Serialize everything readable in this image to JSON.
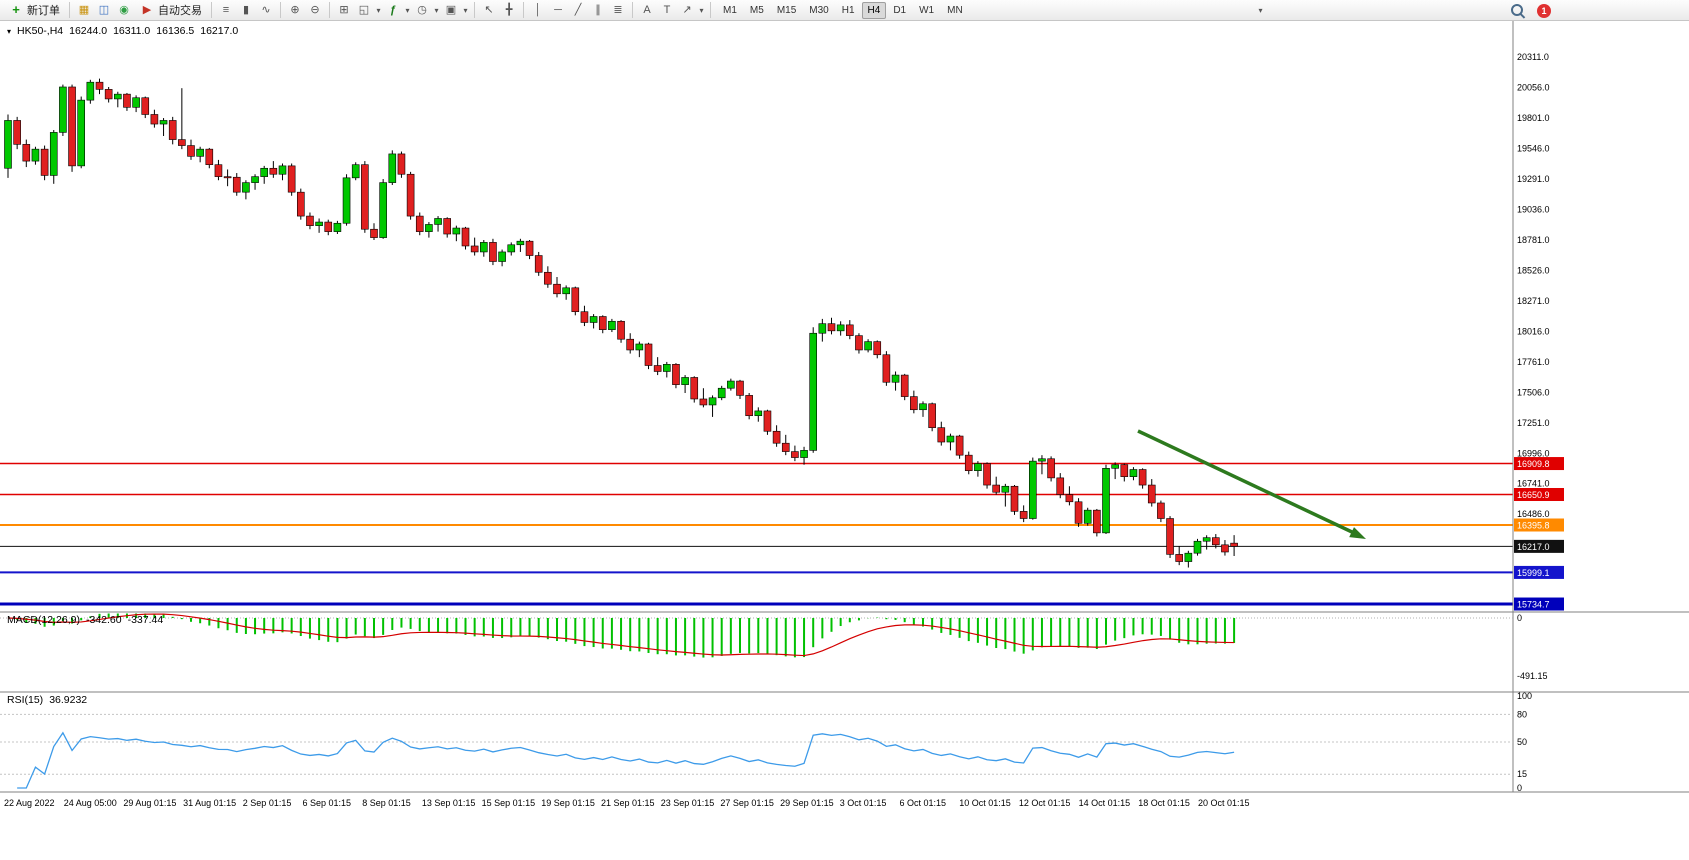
{
  "toolbar": {
    "new_order_label": "新订单",
    "auto_trading_label": "自动交易",
    "timeframes": [
      "M1",
      "M5",
      "M15",
      "M30",
      "H1",
      "H4",
      "D1",
      "W1",
      "MN"
    ],
    "active_timeframe": "H4",
    "notification_count": "1"
  },
  "icons": {
    "new_order": "+",
    "market_watch": "▦",
    "data_window": "◫",
    "navigator": "◉",
    "auto_trading": "▶",
    "bar_chart": "≡",
    "candle_chart": "▮",
    "line_chart": "∿",
    "zoom_in": "⊕",
    "zoom_out": "⊖",
    "tile_windows": "⊞",
    "new_chart": "◱",
    "indicators": "ƒ",
    "periods": "◷",
    "templates": "▣",
    "cursor": "↖",
    "crosshair": "╋",
    "vertical_line": "│",
    "horizontal_line": "─",
    "trendline": "╱",
    "channel": "∥",
    "fibonacci": "≣",
    "text": "A",
    "text_label": "T",
    "arrows": "↗",
    "chevron": "▾"
  },
  "header": {
    "symbol": "HK50-,H4",
    "open": "16244.0",
    "high": "16311.0",
    "low": "16136.5",
    "close": "16217.0"
  },
  "macd": {
    "label": "MACD(12,26,9)",
    "value_main": "-342.60",
    "value_signal": "-337.44"
  },
  "rsi": {
    "label": "RSI(15)",
    "value": "36.9232"
  },
  "colors": {
    "up": "#00c800",
    "down": "#e02020",
    "wick": "#000000",
    "macd_hist": "#00c000",
    "macd_signal": "#d40000",
    "rsi_line": "#3d9be9",
    "arrow": "#2d7a1e",
    "separator": "#808080"
  },
  "chart_data": {
    "type": "candlestick",
    "symbol": "HK50-",
    "period": "H4",
    "ylim": [
      15668,
      20453
    ],
    "y_ticks": [
      "20311.0",
      "20056.0",
      "19801.0",
      "19546.0",
      "19291.0",
      "19036.0",
      "18781.0",
      "18526.0",
      "18271.0",
      "18016.0",
      "17761.0",
      "17506.0",
      "17251.0",
      "16996.0",
      "16741.0",
      "16486.0",
      "16231.0",
      "15976.0",
      "15721.0"
    ],
    "x_labels": [
      "22 Aug 2022",
      "24 Aug 05:00",
      "29 Aug 01:15",
      "31 Aug 01:15",
      "2 Sep 01:15",
      "6 Sep 01:15",
      "8 Sep 01:15",
      "13 Sep 01:15",
      "15 Sep 01:15",
      "19 Sep 01:15",
      "21 Sep 01:15",
      "23 Sep 01:15",
      "27 Sep 01:15",
      "29 Sep 01:15",
      "3 Oct 01:15",
      "6 Oct 01:15",
      "10 Oct 01:15",
      "12 Oct 01:15",
      "14 Oct 01:15",
      "18 Oct 01:15",
      "20 Oct 01:15"
    ],
    "hlines": [
      {
        "label": "16909.8",
        "price": 16909.8,
        "color": "#e00000",
        "width": 1.5
      },
      {
        "label": "16650.9",
        "price": 16650.9,
        "color": "#e00000",
        "width": 1.5
      },
      {
        "label": "16395.8",
        "price": 16395.8,
        "color": "#ff8a00",
        "width": 2
      },
      {
        "label": "16217.0",
        "price": 16217.0,
        "color": "#111111",
        "width": 1
      },
      {
        "label": "15999.1",
        "price": 15999.1,
        "color": "#1414cc",
        "width": 2
      },
      {
        "label": "15734.7",
        "price": 15734.7,
        "color": "#0000bb",
        "width": 3
      }
    ],
    "macd_axis": [
      "0",
      "-491.15"
    ],
    "rsi_axis": [
      "100",
      "80",
      "50",
      "15",
      "0"
    ],
    "rsi_levels": [
      80,
      50,
      15
    ],
    "candles": [
      [
        19380,
        19830,
        19300,
        19780
      ],
      [
        19780,
        19810,
        19540,
        19580
      ],
      [
        19580,
        19620,
        19390,
        19440
      ],
      [
        19440,
        19560,
        19410,
        19540
      ],
      [
        19540,
        19570,
        19280,
        19320
      ],
      [
        19320,
        19700,
        19250,
        19680
      ],
      [
        19680,
        20080,
        19650,
        20060
      ],
      [
        20060,
        20080,
        19350,
        19400
      ],
      [
        19400,
        19980,
        19380,
        19950
      ],
      [
        19950,
        20120,
        19920,
        20100
      ],
      [
        20100,
        20130,
        20000,
        20040
      ],
      [
        20040,
        20060,
        19930,
        19960
      ],
      [
        19960,
        20020,
        19890,
        20000
      ],
      [
        20000,
        20010,
        19860,
        19890
      ],
      [
        19890,
        19990,
        19850,
        19970
      ],
      [
        19970,
        19980,
        19800,
        19830
      ],
      [
        19830,
        19870,
        19720,
        19750
      ],
      [
        19750,
        19800,
        19650,
        19780
      ],
      [
        19780,
        19810,
        19580,
        19620
      ],
      [
        19620,
        20050,
        19540,
        19570
      ],
      [
        19570,
        19620,
        19450,
        19480
      ],
      [
        19480,
        19560,
        19430,
        19540
      ],
      [
        19540,
        19550,
        19380,
        19410
      ],
      [
        19410,
        19450,
        19280,
        19310
      ],
      [
        19310,
        19370,
        19230,
        19305
      ],
      [
        19305,
        19340,
        19150,
        19180
      ],
      [
        19180,
        19280,
        19120,
        19260
      ],
      [
        19260,
        19330,
        19200,
        19310
      ],
      [
        19310,
        19400,
        19250,
        19380
      ],
      [
        19380,
        19440,
        19300,
        19330
      ],
      [
        19330,
        19420,
        19280,
        19400
      ],
      [
        19400,
        19420,
        19150,
        19180
      ],
      [
        19180,
        19210,
        18950,
        18980
      ],
      [
        18980,
        19010,
        18870,
        18900
      ],
      [
        18900,
        18960,
        18840,
        18930
      ],
      [
        18930,
        18950,
        18820,
        18850
      ],
      [
        18850,
        18940,
        18830,
        18920
      ],
      [
        18920,
        19330,
        18900,
        19300
      ],
      [
        19300,
        19430,
        19280,
        19410
      ],
      [
        19410,
        19440,
        18840,
        18870
      ],
      [
        18870,
        18920,
        18780,
        18800
      ],
      [
        18800,
        19290,
        18790,
        19260
      ],
      [
        19260,
        19530,
        19240,
        19500
      ],
      [
        19500,
        19520,
        19300,
        19330
      ],
      [
        19330,
        19350,
        18950,
        18980
      ],
      [
        18980,
        19010,
        18820,
        18850
      ],
      [
        18850,
        18930,
        18800,
        18910
      ],
      [
        18910,
        18980,
        18850,
        18960
      ],
      [
        18960,
        18970,
        18800,
        18830
      ],
      [
        18830,
        18900,
        18770,
        18880
      ],
      [
        18880,
        18890,
        18700,
        18730
      ],
      [
        18730,
        18800,
        18650,
        18680
      ],
      [
        18680,
        18780,
        18640,
        18760
      ],
      [
        18760,
        18790,
        18570,
        18600
      ],
      [
        18600,
        18700,
        18560,
        18680
      ],
      [
        18680,
        18760,
        18650,
        18740
      ],
      [
        18740,
        18790,
        18680,
        18770
      ],
      [
        18770,
        18780,
        18620,
        18650
      ],
      [
        18650,
        18680,
        18480,
        18510
      ],
      [
        18510,
        18560,
        18380,
        18410
      ],
      [
        18410,
        18470,
        18300,
        18330
      ],
      [
        18330,
        18400,
        18280,
        18380
      ],
      [
        18380,
        18390,
        18150,
        18180
      ],
      [
        18180,
        18230,
        18060,
        18090
      ],
      [
        18090,
        18160,
        18040,
        18140
      ],
      [
        18140,
        18150,
        18000,
        18030
      ],
      [
        18030,
        18120,
        18010,
        18100
      ],
      [
        18100,
        18110,
        17920,
        17950
      ],
      [
        17950,
        18000,
        17830,
        17860
      ],
      [
        17860,
        17930,
        17800,
        17910
      ],
      [
        17910,
        17920,
        17700,
        17730
      ],
      [
        17730,
        17800,
        17650,
        17680
      ],
      [
        17680,
        17760,
        17630,
        17740
      ],
      [
        17740,
        17750,
        17540,
        17570
      ],
      [
        17570,
        17650,
        17500,
        17630
      ],
      [
        17630,
        17640,
        17420,
        17450
      ],
      [
        17450,
        17540,
        17380,
        17400
      ],
      [
        17400,
        17480,
        17300,
        17460
      ],
      [
        17460,
        17560,
        17440,
        17540
      ],
      [
        17540,
        17620,
        17520,
        17600
      ],
      [
        17600,
        17610,
        17450,
        17480
      ],
      [
        17480,
        17500,
        17280,
        17310
      ],
      [
        17310,
        17380,
        17260,
        17350
      ],
      [
        17350,
        17360,
        17150,
        17180
      ],
      [
        17180,
        17230,
        17050,
        17080
      ],
      [
        17080,
        17150,
        16980,
        17010
      ],
      [
        17010,
        17060,
        16930,
        16960
      ],
      [
        16960,
        17050,
        16900,
        17020
      ],
      [
        17020,
        18050,
        17000,
        18000
      ],
      [
        18000,
        18120,
        17930,
        18080
      ],
      [
        18080,
        18130,
        17990,
        18020
      ],
      [
        18020,
        18100,
        17980,
        18070
      ],
      [
        18070,
        18110,
        17950,
        17980
      ],
      [
        17980,
        18000,
        17830,
        17860
      ],
      [
        17860,
        17950,
        17840,
        17930
      ],
      [
        17930,
        17940,
        17790,
        17820
      ],
      [
        17820,
        17850,
        17560,
        17590
      ],
      [
        17590,
        17680,
        17520,
        17650
      ],
      [
        17650,
        17660,
        17440,
        17470
      ],
      [
        17470,
        17520,
        17330,
        17360
      ],
      [
        17360,
        17430,
        17300,
        17410
      ],
      [
        17410,
        17420,
        17180,
        17210
      ],
      [
        17210,
        17260,
        17060,
        17090
      ],
      [
        17090,
        17160,
        17020,
        17140
      ],
      [
        17140,
        17150,
        16950,
        16980
      ],
      [
        16980,
        17010,
        16820,
        16850
      ],
      [
        16850,
        16930,
        16800,
        16910
      ],
      [
        16910,
        16920,
        16700,
        16730
      ],
      [
        16730,
        16800,
        16650,
        16670
      ],
      [
        16670,
        16740,
        16550,
        16720
      ],
      [
        16720,
        16730,
        16480,
        16510
      ],
      [
        16510,
        16560,
        16420,
        16450
      ],
      [
        16450,
        16960,
        16440,
        16930
      ],
      [
        16930,
        16980,
        16820,
        16950
      ],
      [
        16950,
        16970,
        16760,
        16790
      ],
      [
        16790,
        16830,
        16620,
        16650
      ],
      [
        16650,
        16720,
        16560,
        16590
      ],
      [
        16590,
        16620,
        16380,
        16410
      ],
      [
        16410,
        16540,
        16390,
        16520
      ],
      [
        16520,
        16530,
        16300,
        16330
      ],
      [
        16330,
        16900,
        16320,
        16870
      ],
      [
        16870,
        16920,
        16780,
        16900
      ],
      [
        16900,
        16910,
        16760,
        16800
      ],
      [
        16800,
        16880,
        16770,
        16860
      ],
      [
        16860,
        16870,
        16700,
        16730
      ],
      [
        16730,
        16780,
        16550,
        16580
      ],
      [
        16580,
        16600,
        16420,
        16450
      ],
      [
        16450,
        16470,
        16120,
        16150
      ],
      [
        16150,
        16220,
        16060,
        16090
      ],
      [
        16090,
        16180,
        16040,
        16160
      ],
      [
        16160,
        16280,
        16140,
        16260
      ],
      [
        16260,
        16310,
        16190,
        16290
      ],
      [
        16290,
        16320,
        16200,
        16230
      ],
      [
        16230,
        16270,
        16140,
        16170
      ],
      [
        16244,
        16311,
        16136.5,
        16217
      ]
    ]
  }
}
